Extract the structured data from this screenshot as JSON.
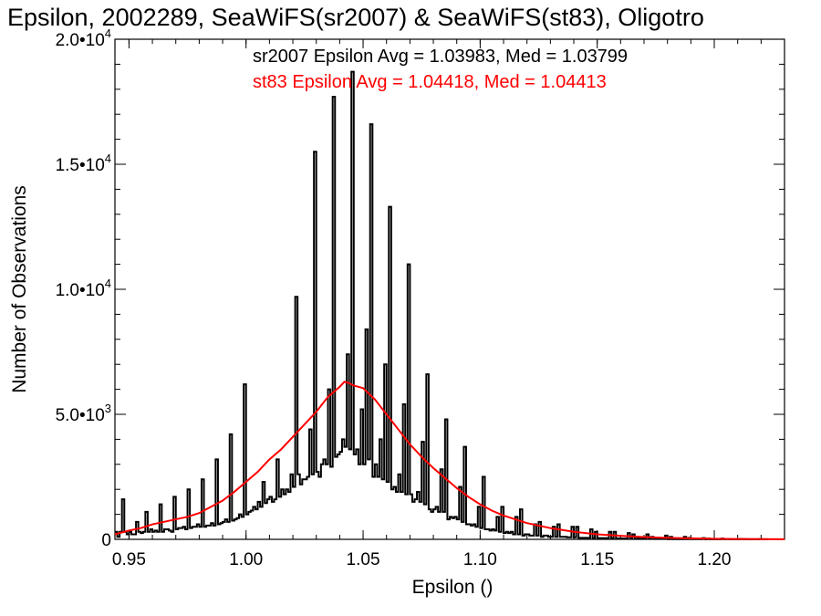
{
  "chart_data": {
    "type": "histogram",
    "title": "Epsilon, 2002289, SeaWiFS(sr2007) & SeaWiFS(st83), Oligotro",
    "xlabel": "Epsilon ()",
    "ylabel": "Number of Observations",
    "xlim": [
      0.944,
      1.23
    ],
    "ylim": [
      0,
      20000
    ],
    "x_ticks": [
      "0.95",
      "1.00",
      "1.05",
      "1.10",
      "1.15",
      "1.20"
    ],
    "x_tick_values": [
      0.95,
      1.0,
      1.05,
      1.1,
      1.15,
      1.2
    ],
    "y_ticks": [
      {
        "value": 0,
        "mantissa": "0",
        "exponent": ""
      },
      {
        "value": 5000,
        "mantissa": "5.0•10",
        "exponent": "3"
      },
      {
        "value": 10000,
        "mantissa": "1.0•10",
        "exponent": "4"
      },
      {
        "value": 15000,
        "mantissa": "1.5•10",
        "exponent": "4"
      },
      {
        "value": 20000,
        "mantissa": "2.0•10",
        "exponent": "4"
      }
    ],
    "grid": false,
    "legend_position": "top",
    "series": [
      {
        "name": "sr2007 Epsilon Avg = 1.03983, Med = 1.03799",
        "color": "#000000",
        "style": "step",
        "bin_start": 0.944,
        "bin_width": 0.001,
        "values": [
          300,
          100,
          300,
          1600,
          300,
          200,
          300,
          200,
          200,
          700,
          300,
          250,
          300,
          1100,
          300,
          400,
          300,
          350,
          300,
          1400,
          300,
          400,
          400,
          350,
          300,
          1700,
          400,
          450,
          450,
          500,
          400,
          2000,
          450,
          500,
          500,
          600,
          500,
          2400,
          500,
          550,
          550,
          650,
          550,
          3200,
          600,
          650,
          700,
          800,
          700,
          4200,
          750,
          800,
          850,
          1000,
          900,
          6200,
          1000,
          1100,
          1150,
          1300,
          1200,
          1500,
          1300,
          2300,
          1450,
          1600,
          1700,
          1500,
          1600,
          3200,
          1700,
          2000,
          1800,
          2000,
          1900,
          2600,
          2100,
          9700,
          2600,
          2200,
          2400,
          2400,
          2500,
          4400,
          2600,
          15500,
          2700,
          2500,
          3000,
          3200,
          3000,
          6000,
          2900,
          17700,
          3300,
          3400,
          3500,
          4000,
          3700,
          7400,
          3600,
          18700,
          3400,
          3600,
          3000,
          5200,
          3000,
          8400,
          3200,
          16600,
          2500,
          3000,
          2500,
          4000,
          2400,
          7000,
          2300,
          13300,
          2000,
          2100,
          1900,
          2600,
          1900,
          5400,
          1800,
          11000,
          1800,
          1500,
          1600,
          1900,
          1500,
          3900,
          1400,
          6600,
          1200,
          1100,
          1200,
          1300,
          1100,
          2800,
          1100,
          4800,
          800,
          900,
          850,
          900,
          800,
          2100,
          700,
          3700,
          600,
          600,
          550,
          600,
          500,
          1300,
          450,
          2500,
          400,
          400,
          350,
          400,
          350,
          900,
          300,
          1300,
          250,
          300,
          250,
          300,
          200,
          900,
          200,
          1200,
          150,
          200,
          200,
          150,
          150,
          600,
          150,
          700,
          100,
          150,
          150,
          100,
          100,
          500,
          100,
          600,
          100,
          100,
          100,
          80,
          80,
          500,
          80,
          500,
          60,
          60,
          60,
          60,
          60,
          400,
          50,
          300,
          50,
          50,
          50,
          50,
          40,
          300,
          40,
          300,
          30,
          40,
          30,
          30,
          30,
          250,
          30,
          200,
          20,
          30,
          20,
          30,
          20,
          200,
          20,
          100,
          20,
          20,
          20,
          20,
          20,
          150,
          10,
          100,
          10,
          10,
          10,
          10,
          10,
          100,
          10,
          60,
          10,
          10,
          10,
          10,
          10,
          50,
          5,
          30,
          5,
          5,
          5,
          5,
          5,
          30,
          5,
          20,
          5,
          5,
          5,
          5,
          5,
          20,
          5,
          10,
          5,
          5,
          5,
          5,
          5,
          10,
          5,
          5,
          5
        ]
      },
      {
        "name": "st83 Epsilon Avg = 1.04418, Med = 1.04413",
        "color": "#ff0000",
        "style": "line",
        "x": [
          0.944,
          0.95,
          0.955,
          0.96,
          0.965,
          0.97,
          0.975,
          0.98,
          0.985,
          0.99,
          0.995,
          1.0,
          1.005,
          1.01,
          1.015,
          1.02,
          1.025,
          1.03,
          1.035,
          1.04,
          1.042,
          1.044,
          1.046,
          1.05,
          1.055,
          1.06,
          1.065,
          1.07,
          1.075,
          1.08,
          1.085,
          1.09,
          1.095,
          1.1,
          1.105,
          1.11,
          1.115,
          1.12,
          1.13,
          1.14,
          1.15,
          1.16,
          1.17,
          1.18,
          1.19,
          1.2,
          1.21,
          1.22,
          1.23
        ],
        "values": [
          200,
          350,
          450,
          600,
          700,
          800,
          900,
          1050,
          1300,
          1550,
          1900,
          2300,
          2700,
          3200,
          3600,
          4100,
          4600,
          5100,
          5700,
          6100,
          6300,
          6250,
          6150,
          6050,
          5600,
          5000,
          4400,
          3800,
          3300,
          2850,
          2450,
          2050,
          1700,
          1400,
          1150,
          950,
          800,
          650,
          450,
          300,
          200,
          140,
          90,
          60,
          40,
          25,
          15,
          10,
          5
        ]
      }
    ]
  }
}
